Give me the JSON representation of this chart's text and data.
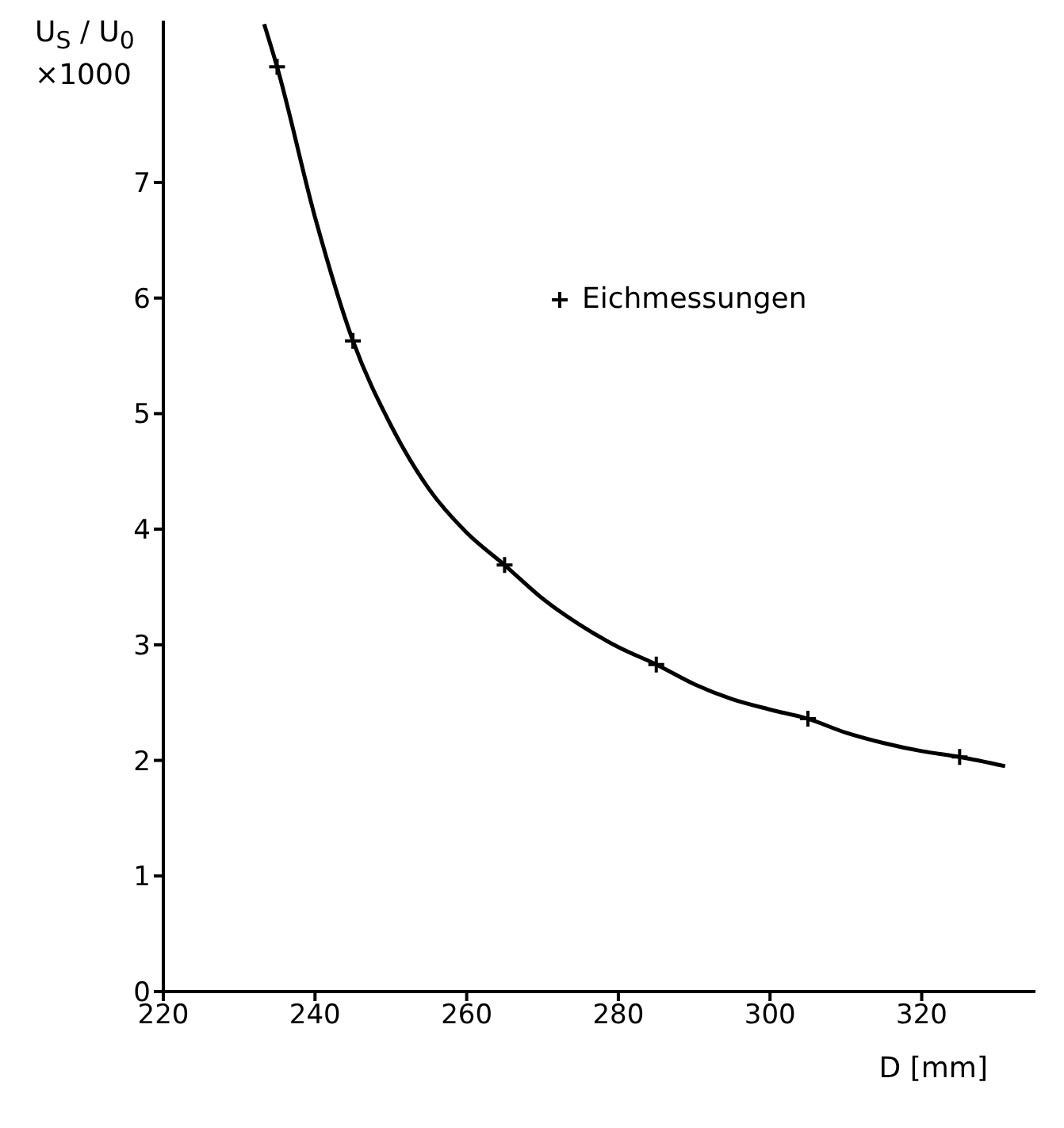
{
  "chart_data": {
    "type": "line",
    "xlabel": "D [mm]",
    "ylabel": "U$_{S}$ / U$_{0}$ ×1000",
    "xlim": [
      220,
      335
    ],
    "ylim": [
      0,
      8.4
    ],
    "xticks": [
      220,
      240,
      260,
      280,
      300,
      320
    ],
    "yticks": [
      0,
      1,
      2,
      3,
      4,
      5,
      6,
      7
    ],
    "grid": false,
    "legend": "top right",
    "series": [
      {
        "color": "#000000",
        "marker": "none",
        "line_style": "solid",
        "x": [
          233.3,
          235,
          240,
          245,
          250,
          255,
          260,
          265,
          270,
          275,
          280,
          285,
          290,
          295,
          300,
          305,
          310,
          315,
          320,
          325,
          331
        ],
        "values": [
          8.37,
          8.0,
          6.7,
          5.63,
          4.9,
          4.35,
          3.97,
          3.69,
          3.4,
          3.17,
          2.98,
          2.83,
          2.66,
          2.53,
          2.44,
          2.36,
          2.24,
          2.15,
          2.08,
          2.03,
          1.95
        ]
      },
      {
        "type": "scatter",
        "name": "Eichmessungen",
        "color": "#000000",
        "marker": "cross",
        "x": [
          235,
          245,
          265,
          285,
          305,
          325
        ],
        "values": [
          8.0,
          5.63,
          3.69,
          2.83,
          2.36,
          2.03
        ]
      }
    ]
  }
}
